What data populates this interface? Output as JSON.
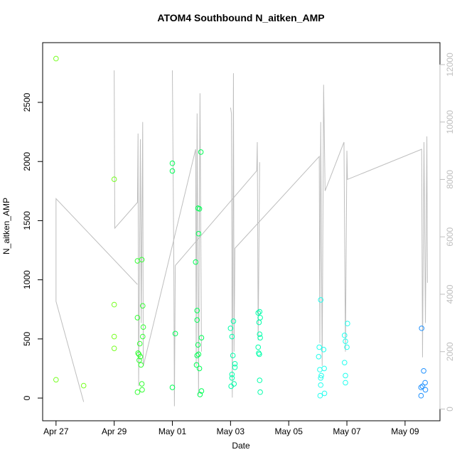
{
  "chart_data": {
    "type": "scatter",
    "title": "ATOM4 Southbound N_aitken_AMP",
    "x_label": "Date",
    "y_label": "N_aitken_AMP",
    "xlim": [
      -0.46,
      13.2
    ],
    "xticks": [
      {
        "value": 0,
        "label": "Apr 27"
      },
      {
        "value": 2,
        "label": "Apr 29"
      },
      {
        "value": 4,
        "label": "May 01"
      },
      {
        "value": 6,
        "label": "May 03"
      },
      {
        "value": 8,
        "label": "May 05"
      },
      {
        "value": 10,
        "label": "May 07"
      },
      {
        "value": 12,
        "label": "May 09"
      }
    ],
    "ylim": [
      -192,
      3005
    ],
    "yticks": [
      0,
      500,
      1000,
      1500,
      2000,
      2500
    ],
    "y2lim": [
      -409,
      12766
    ],
    "y2ticks": [
      0,
      2000,
      4000,
      6000,
      8000,
      10000,
      12000
    ],
    "series": [
      {
        "mode": "line",
        "axis": "y2",
        "color": "#bebebe",
        "x": [
          0.95,
          0,
          0,
          2.8,
          null,
          2.0,
          2.02,
          2.8,
          2.82,
          2.84,
          2.9,
          2.93,
          2.98,
          3.0,
          4.8,
          4.82,
          4.85,
          4.9,
          4.95,
          5.0,
          null,
          4.0,
          4.05,
          4.07,
          4.1,
          6.9,
          6.92,
          6.95,
          7.0,
          null,
          6.0,
          6.03,
          6.06,
          6.1,
          6.12,
          6.15,
          9.05,
          9.07,
          9.1,
          9.15,
          9.2,
          9.25,
          9.9,
          9.95,
          10.0,
          10.02,
          12.57,
          12.6,
          12.65,
          12.7,
          12.75,
          12.77
        ],
        "values": [
          250,
          3750,
          7330,
          4340,
          null,
          11800,
          6300,
          7200,
          9600,
          800,
          9400,
          3000,
          10000,
          1500,
          9050,
          1500,
          10300,
          500,
          11000,
          2000,
          null,
          11800,
          5000,
          100,
          5000,
          8300,
          9300,
          2400,
          8600,
          null,
          10500,
          10300,
          400,
          11700,
          2000,
          5600,
          8800,
          2300,
          10000,
          1500,
          11300,
          7600,
          9300,
          2000,
          9000,
          8000,
          9050,
          1800,
          9300,
          3000,
          9500,
          4400
        ]
      },
      {
        "mode": "points",
        "color": "#77ff22",
        "x": [
          0,
          0,
          0.95,
          2.0,
          2.0,
          2.0,
          2.0
        ],
        "values": [
          2870,
          155,
          105,
          1850,
          790,
          520,
          420
        ]
      },
      {
        "mode": "points",
        "color": "#33ff33",
        "x": [
          2.8,
          2.95,
          2.8,
          2.98,
          3.0,
          2.98,
          2.88,
          2.82,
          2.85,
          2.9,
          2.86,
          2.92,
          2.95,
          2.96,
          2.8
        ],
        "values": [
          1160,
          1170,
          680,
          780,
          600,
          520,
          460,
          380,
          370,
          350,
          320,
          280,
          120,
          70,
          50
        ]
      },
      {
        "mode": "points",
        "color": "#00ff55",
        "x": [
          4.0,
          4.0,
          4.0,
          4.1,
          4.8,
          4.98,
          4.88,
          4.93,
          4.9,
          4.85,
          4.85,
          4.88,
          4.9,
          4.85,
          4.83,
          5.0,
          4.93,
          5.0,
          4.95
        ],
        "values": [
          1985,
          1920,
          90,
          545,
          1150,
          2080,
          1605,
          1600,
          1390,
          740,
          660,
          450,
          370,
          360,
          280,
          510,
          250,
          60,
          30
        ]
      },
      {
        "mode": "points",
        "color": "#00ffaa",
        "x": [
          6.0,
          6.1,
          6.05,
          6.08,
          6.15,
          6.15,
          6.05,
          6.05,
          6.12,
          6.02,
          6.95,
          7.0,
          7.02,
          6.98,
          7.0,
          7.02,
          6.95,
          6.97,
          6.99,
          7.0,
          7.02
        ],
        "values": [
          590,
          650,
          520,
          360,
          290,
          260,
          200,
          170,
          120,
          100,
          720,
          730,
          680,
          640,
          540,
          510,
          430,
          380,
          370,
          150,
          50
        ]
      },
      {
        "mode": "points",
        "color": "#22ffee",
        "x": [
          9.1,
          9.05,
          9.2,
          9.03,
          9.07,
          9.22,
          9.12,
          9.1,
          9.1,
          9.23,
          9.08,
          10.02,
          9.92,
          9.95,
          10.0,
          9.92,
          9.95,
          9.95
        ],
        "values": [
          830,
          430,
          410,
          350,
          240,
          250,
          190,
          170,
          110,
          40,
          20,
          630,
          530,
          480,
          430,
          300,
          190,
          130
        ]
      },
      {
        "mode": "points",
        "color": "#1e90ff",
        "x": [
          12.57,
          12.64,
          12.69,
          12.6,
          12.55,
          12.7,
          12.55
        ],
        "values": [
          590,
          230,
          130,
          100,
          90,
          70,
          20
        ]
      }
    ]
  }
}
